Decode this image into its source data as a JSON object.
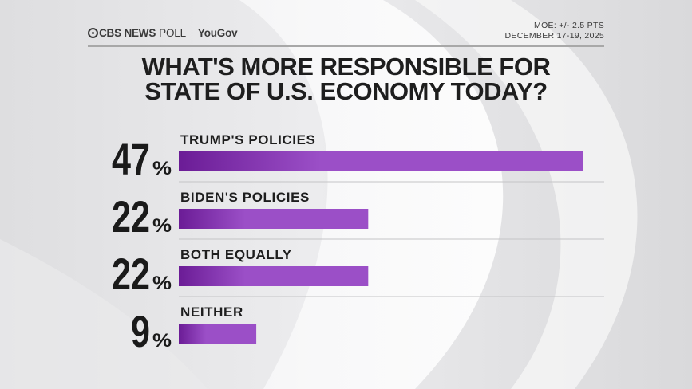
{
  "header": {
    "brand": "CBS NEWS",
    "brand_suffix": "POLL",
    "partner": "YouGov",
    "moe": "MOE: +/- 2.5 PTS",
    "dates": "DECEMBER 17-19, 2025"
  },
  "title_lines": [
    "WHAT'S MORE RESPONSIBLE FOR",
    "STATE OF U.S. ECONOMY TODAY?"
  ],
  "colors": {
    "bar_dark": "#6b1c96",
    "bar_light": "#9b4fc7",
    "text": "#1a1a1a"
  },
  "chart_data": {
    "type": "bar",
    "orientation": "horizontal",
    "categories": [
      "TRUMP'S POLICIES",
      "BIDEN'S POLICIES",
      "BOTH EQUALLY",
      "NEITHER"
    ],
    "values": [
      47,
      22,
      22,
      9
    ],
    "value_labels": [
      "47",
      "22",
      "22",
      "9"
    ],
    "unit": "%",
    "xlim": [
      0,
      47
    ],
    "title": "WHAT'S MORE RESPONSIBLE FOR STATE OF U.S. ECONOMY TODAY?",
    "grid": false,
    "legend": "none"
  }
}
